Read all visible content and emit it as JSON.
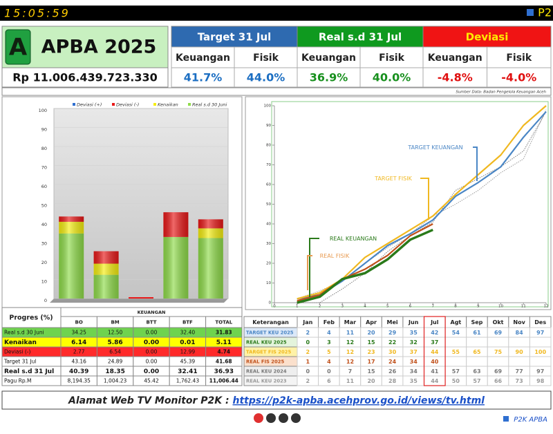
{
  "clock": "15:05:59",
  "brand": "P2",
  "header": {
    "logo_letter": "A",
    "title": "APBA 2025",
    "amount": "Rp 11.006.439.723.330",
    "groups": [
      {
        "title": "Target 31 Jul",
        "fill": "#2e6ab0",
        "text_color": "#ffffff",
        "value_color": "#1b6ec2",
        "cols": [
          "Keuangan",
          "Fisik"
        ],
        "values": [
          "41.7%",
          "44.0%"
        ]
      },
      {
        "title": "Real s.d 31 Jul",
        "fill": "#0f9a1f",
        "text_color": "#ffffff",
        "value_color": "#18901e",
        "cols": [
          "Keuangan",
          "Fisik"
        ],
        "values": [
          "36.9%",
          "40.0%"
        ]
      },
      {
        "title": "Deviasi",
        "fill": "#f01414",
        "text_color": "#ffea00",
        "value_color": "#e01010",
        "cols": [
          "Keuangan",
          "Fisik"
        ],
        "values": [
          "-4.8%",
          "-4.0%"
        ]
      }
    ]
  },
  "source": "Sumber Data: Badan Pengelola Keuangan Aceh",
  "chart_data": [
    {
      "type": "bar",
      "stacked": true,
      "categories": [
        null,
        null,
        null,
        null,
        null
      ],
      "series": [
        {
          "name": "Deviasi (+)",
          "color": "#2f6fd0",
          "values": [
            0,
            0,
            0,
            0,
            0
          ]
        },
        {
          "name": "Deviasi (-)",
          "color": "#e81818",
          "values": [
            2.77,
            6.54,
            0,
            12.99,
            4.74
          ]
        },
        {
          "name": "Kenaikan",
          "color": "#f5ee10",
          "values": [
            6.14,
            5.86,
            0,
            0.01,
            5.11
          ]
        },
        {
          "name": "Real s.d 30 Juni",
          "color": "#8fdc4a",
          "values": [
            34.25,
            12.5,
            0,
            32.4,
            31.83
          ]
        }
      ],
      "ylim": [
        0,
        100
      ],
      "yticks": [
        0,
        10,
        20,
        30,
        40,
        50,
        60,
        70,
        80,
        90,
        100
      ],
      "legend": "top"
    },
    {
      "type": "line",
      "x": [
        1,
        2,
        3,
        4,
        5,
        6,
        7,
        8,
        9,
        10,
        11,
        12
      ],
      "xlim": [
        0,
        12
      ],
      "xticks": [
        0,
        1,
        2,
        3,
        4,
        5,
        6,
        7,
        8,
        9,
        10,
        11,
        12
      ],
      "ylim": [
        0,
        100
      ],
      "yticks": [
        0,
        10,
        20,
        30,
        40,
        50,
        60,
        70,
        80,
        90,
        100
      ],
      "annotations": [
        "TARGET KEUANGAN",
        "TARGET FISIK",
        "REAL KEUANGAN",
        "REAL FISIK"
      ],
      "series": [
        {
          "name": "TARGET KEU 2025",
          "color": "#4a86c5",
          "label_fill": "#dbe8f8",
          "style": "solid",
          "values": [
            2,
            4,
            11,
            20,
            29,
            35,
            42,
            54,
            61,
            69,
            84,
            97
          ]
        },
        {
          "name": "REAL KEU 2025",
          "color": "#2a7a1a",
          "label_fill": "#e4f4dc",
          "style": "thick",
          "values": [
            0,
            3,
            12,
            15,
            22,
            32,
            37,
            null,
            null,
            null,
            null,
            null
          ]
        },
        {
          "name": "TARGET FIS 2025",
          "color": "#f0b820",
          "label_fill": "#fff2a8",
          "style": "solid",
          "values": [
            2,
            5,
            12,
            23,
            30,
            37,
            44,
            55,
            65,
            75,
            90,
            100
          ]
        },
        {
          "name": "REAL FIS 2025",
          "color": "#c0501a",
          "label_fill": "#fbe0cc",
          "style": "solid",
          "values": [
            1,
            4,
            12,
            17,
            24,
            34,
            40,
            null,
            null,
            null,
            null,
            null
          ]
        },
        {
          "name": "REAL KEU 2024",
          "color": "#777777",
          "label_fill": "#eeeeee",
          "style": "dotted",
          "values": [
            0,
            0,
            7,
            15,
            26,
            34,
            41,
            57,
            63,
            69,
            77,
            97
          ]
        },
        {
          "name": "REAL KEU 2023",
          "color": "#999999",
          "label_fill": "#f4f4f4",
          "style": "dotted",
          "values": [
            2,
            6,
            11,
            20,
            28,
            35,
            44,
            50,
            57,
            66,
            73,
            98
          ]
        }
      ]
    }
  ],
  "progress_table": {
    "title": "Progres (%)",
    "group": "KEUANGAN",
    "columns": [
      "BO",
      "BM",
      "BTT",
      "BTF",
      "TOTAL"
    ],
    "rows": [
      {
        "label": "Real s.d 30 Juni",
        "fill": "#6fd34f",
        "bold": false,
        "cells": [
          "34.25",
          "12.50",
          "0.00",
          "32.40",
          "31.83"
        ]
      },
      {
        "label": "Kenaikan",
        "fill": "#ffff00",
        "bold": true,
        "cells": [
          "6.14",
          "5.86",
          "0.00",
          "0.01",
          "5.11"
        ]
      },
      {
        "label": "Deviasi  (-)",
        "fill": "#ff2a2a",
        "bold": false,
        "cells": [
          "2.77",
          "6.54",
          "0.00",
          "12.99",
          "4.74"
        ]
      },
      {
        "label": "Target 31 Jul",
        "fill": "#ffffff",
        "bold": false,
        "cells": [
          "43.16",
          "24.89",
          "0.00",
          "45.39",
          "41.68"
        ]
      },
      {
        "label": "Real s.d 31 Jul",
        "fill": "#ffffff",
        "bold": true,
        "cells": [
          "40.39",
          "18.35",
          "0.00",
          "32.41",
          "36.93"
        ]
      },
      {
        "label": "Pagu Rp.M",
        "fill": "#ffffff",
        "bold": false,
        "cells": [
          "8,194.35",
          "1,004.23",
          "45.42",
          "1,762.43",
          "11,006.44"
        ]
      }
    ]
  },
  "monthly_table": {
    "header": [
      "Keterangan",
      "Jan",
      "Feb",
      "Mar",
      "Apr",
      "Mei",
      "Jun",
      "Jul",
      "Agt",
      "Sep",
      "Okt",
      "Nov",
      "Des"
    ]
  },
  "footer": {
    "label": "Alamat Web TV Monitor P2K : ",
    "url": "https://p2k-apba.acehprov.go.id/views/tv.html"
  },
  "logo": "P2K APBA"
}
